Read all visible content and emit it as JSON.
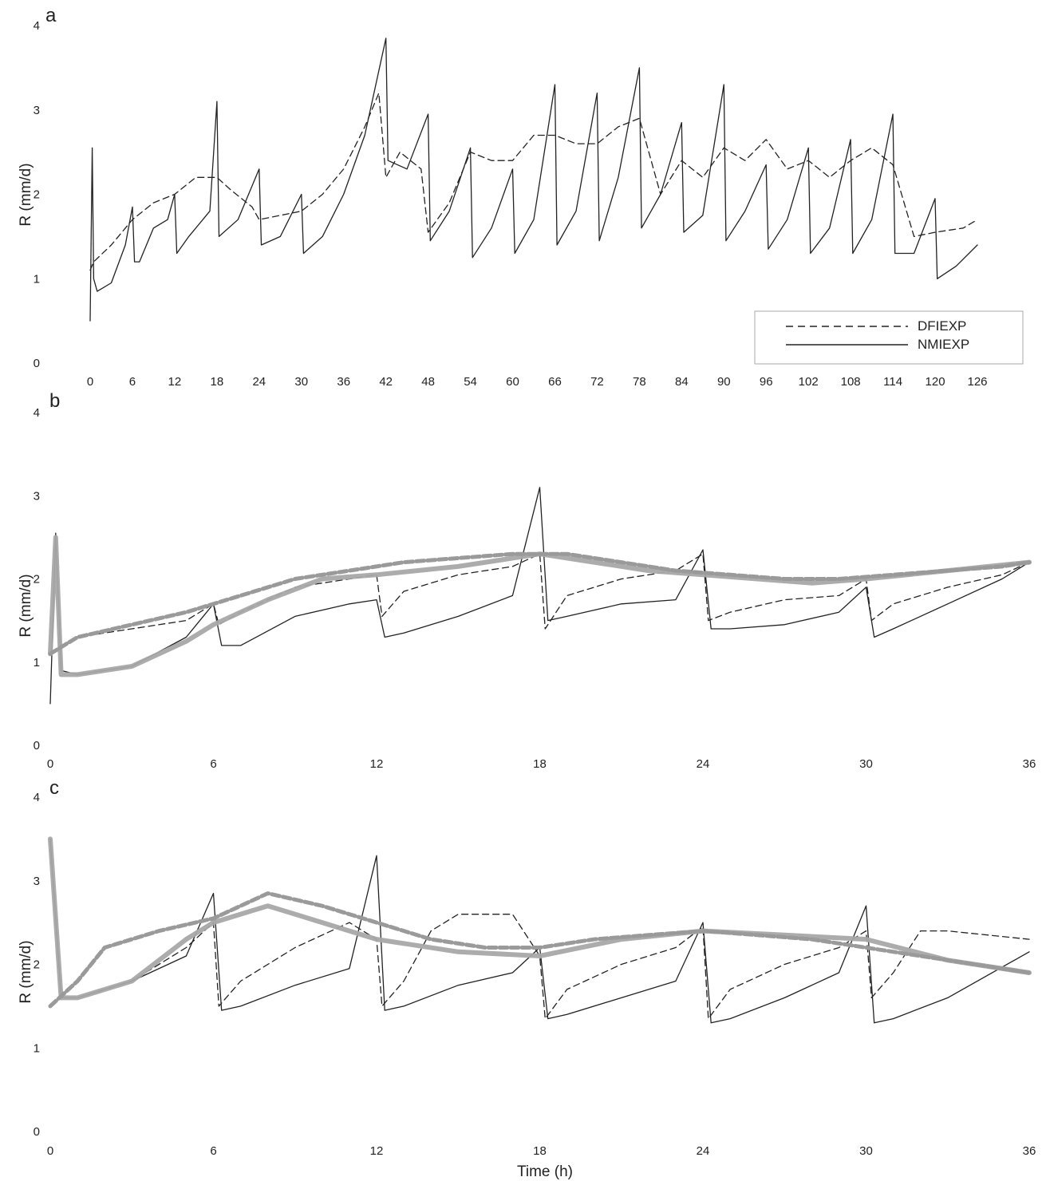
{
  "chart_data": [
    {
      "type": "line",
      "panel": "a",
      "ylabel": "R (mm/d)",
      "xlabel": "",
      "ylim": [
        0,
        4
      ],
      "xlim": [
        0,
        126
      ],
      "xticks": [
        0,
        6,
        12,
        18,
        24,
        30,
        36,
        42,
        48,
        54,
        60,
        66,
        72,
        78,
        84,
        90,
        96,
        102,
        108,
        114,
        120,
        126
      ],
      "yticks": [
        0,
        1,
        2,
        3,
        4
      ],
      "legend": {
        "placement": "bottom-right",
        "entries": [
          "DFIEXP",
          "NMIEXP"
        ]
      },
      "series": [
        {
          "name": "DFIEXP",
          "style": "dashed",
          "x": [
            0,
            0.5,
            3,
            6,
            9,
            12,
            15,
            18,
            20,
            23,
            24,
            27,
            30,
            33,
            36,
            39,
            41,
            42,
            44,
            47,
            48,
            51,
            54,
            57,
            60,
            63,
            66,
            69,
            72,
            75,
            78,
            81,
            84,
            87,
            90,
            93,
            96,
            99,
            102,
            105,
            108,
            111,
            114,
            117,
            120,
            124,
            126
          ],
          "y": [
            1.1,
            1.2,
            1.4,
            1.7,
            1.9,
            2.0,
            2.2,
            2.2,
            2.05,
            1.85,
            1.7,
            1.75,
            1.8,
            2.0,
            2.3,
            2.8,
            3.2,
            2.2,
            2.5,
            2.3,
            1.55,
            1.9,
            2.5,
            2.4,
            2.4,
            2.7,
            2.7,
            2.6,
            2.6,
            2.8,
            2.9,
            2.0,
            2.4,
            2.2,
            2.55,
            2.4,
            2.65,
            2.3,
            2.4,
            2.2,
            2.4,
            2.55,
            2.35,
            1.5,
            1.55,
            1.6,
            1.7
          ]
        },
        {
          "name": "NMIEXP",
          "style": "solid",
          "x": [
            0,
            0.3,
            0.5,
            1,
            3,
            5,
            6,
            6.3,
            7,
            9,
            11,
            12,
            12.3,
            14,
            17,
            18,
            18.3,
            21,
            24,
            24.3,
            27,
            30,
            30.3,
            33,
            36,
            39,
            42,
            42.3,
            45,
            48,
            48.3,
            51,
            54,
            54.3,
            57,
            60,
            60.3,
            63,
            66,
            66.3,
            69,
            72,
            72.3,
            75,
            78,
            78.3,
            81,
            84,
            84.3,
            87,
            90,
            90.3,
            93,
            96,
            96.3,
            99,
            102,
            102.3,
            105,
            108,
            108.3,
            111,
            114,
            114.3,
            117,
            120,
            120.3,
            123,
            126
          ],
          "y": [
            0.5,
            2.55,
            1.0,
            0.85,
            0.95,
            1.4,
            1.85,
            1.2,
            1.2,
            1.6,
            1.7,
            2.0,
            1.3,
            1.5,
            1.8,
            3.1,
            1.5,
            1.7,
            2.3,
            1.4,
            1.5,
            2.0,
            1.3,
            1.5,
            2.0,
            2.7,
            3.85,
            2.4,
            2.3,
            2.95,
            1.45,
            1.8,
            2.55,
            1.25,
            1.6,
            2.3,
            1.3,
            1.7,
            3.3,
            1.4,
            1.8,
            3.2,
            1.45,
            2.2,
            3.5,
            1.6,
            2.0,
            2.85,
            1.55,
            1.75,
            3.3,
            1.45,
            1.8,
            2.35,
            1.35,
            1.7,
            2.55,
            1.3,
            1.6,
            2.65,
            1.3,
            1.7,
            2.95,
            1.3,
            1.3,
            1.95,
            1.0,
            1.15,
            1.4
          ]
        }
      ]
    },
    {
      "type": "line",
      "panel": "b",
      "ylabel": "R (mm/d)",
      "xlabel": "",
      "ylim": [
        0,
        4
      ],
      "xlim": [
        0,
        36
      ],
      "xticks": [
        0,
        6,
        12,
        18,
        24,
        30,
        36
      ],
      "yticks": [
        0,
        1,
        2,
        3,
        4
      ],
      "series": [
        {
          "style": "dashed",
          "x": [
            0,
            0.4,
            1,
            3,
            5,
            6,
            6.2,
            7,
            9,
            11,
            12,
            12.2,
            13,
            15,
            17,
            18,
            18.2,
            19,
            21,
            23,
            24,
            24.2,
            25,
            27,
            29,
            30,
            30.2,
            31,
            33,
            35,
            36
          ],
          "y": [
            1.1,
            1.2,
            1.3,
            1.4,
            1.5,
            1.7,
            1.45,
            1.6,
            1.9,
            2.0,
            2.05,
            1.55,
            1.85,
            2.05,
            2.15,
            2.3,
            1.4,
            1.8,
            2.0,
            2.1,
            2.3,
            1.5,
            1.6,
            1.75,
            1.8,
            2.0,
            1.5,
            1.7,
            1.9,
            2.05,
            2.2
          ]
        },
        {
          "style": "solid",
          "x": [
            0,
            0.2,
            0.4,
            1,
            3,
            5,
            6,
            6.3,
            7,
            9,
            11,
            12,
            12.3,
            13,
            15,
            17,
            18,
            18.3,
            19,
            21,
            23,
            24,
            24.3,
            25,
            27,
            29,
            30,
            30.3,
            31,
            33,
            35,
            36
          ],
          "y": [
            0.5,
            2.55,
            0.9,
            0.85,
            0.95,
            1.3,
            1.7,
            1.2,
            1.2,
            1.55,
            1.7,
            1.75,
            1.3,
            1.35,
            1.55,
            1.8,
            3.1,
            1.5,
            1.55,
            1.7,
            1.75,
            2.35,
            1.4,
            1.4,
            1.45,
            1.6,
            1.9,
            1.3,
            1.4,
            1.7,
            2.0,
            2.2
          ]
        },
        {
          "style": "thick-gray-band",
          "x": [
            0,
            0.2,
            0.4,
            1,
            3,
            5,
            6,
            8,
            10,
            12,
            15,
            18,
            20,
            22,
            24,
            26,
            28,
            30,
            33,
            36
          ],
          "y": [
            1.1,
            2.5,
            0.85,
            0.85,
            0.95,
            1.25,
            1.45,
            1.75,
            2.0,
            2.05,
            2.15,
            2.3,
            2.2,
            2.1,
            2.05,
            2.0,
            1.95,
            2.0,
            2.1,
            2.2
          ]
        },
        {
          "style": "gray-dashed-band",
          "x": [
            0,
            1,
            3,
            5,
            7,
            9,
            11,
            13,
            15,
            17,
            19,
            21,
            23,
            25,
            27,
            29,
            31,
            33,
            35,
            36
          ],
          "y": [
            1.1,
            1.3,
            1.45,
            1.6,
            1.8,
            2.0,
            2.1,
            2.2,
            2.25,
            2.3,
            2.3,
            2.2,
            2.1,
            2.05,
            2.0,
            2.0,
            2.05,
            2.1,
            2.15,
            2.2
          ]
        }
      ]
    },
    {
      "type": "line",
      "panel": "c",
      "ylabel": "R (mm/d)",
      "xlabel": "Time (h)",
      "ylim": [
        0,
        4
      ],
      "xlim": [
        0,
        36
      ],
      "xticks": [
        0,
        6,
        12,
        18,
        24,
        30,
        36
      ],
      "yticks": [
        0,
        1,
        2,
        3,
        4
      ],
      "series": [
        {
          "style": "dashed",
          "x": [
            0,
            0.4,
            1,
            3,
            5,
            6,
            6.2,
            7,
            9,
            11,
            12,
            12.2,
            13,
            14,
            15,
            17,
            18,
            18.2,
            19,
            21,
            23,
            24,
            24.2,
            25,
            27,
            29,
            30,
            30.2,
            31,
            32,
            33,
            36
          ],
          "y": [
            3.5,
            1.6,
            1.6,
            1.8,
            2.2,
            2.5,
            1.5,
            1.8,
            2.2,
            2.5,
            2.3,
            1.5,
            1.8,
            2.4,
            2.6,
            2.6,
            2.1,
            1.35,
            1.7,
            2.0,
            2.2,
            2.45,
            1.35,
            1.7,
            2.0,
            2.2,
            2.4,
            1.6,
            1.9,
            2.4,
            2.4,
            2.3
          ]
        },
        {
          "style": "solid",
          "x": [
            0,
            0.4,
            1,
            3,
            5,
            6,
            6.3,
            7,
            9,
            11,
            12,
            12.3,
            13,
            15,
            17,
            18,
            18.3,
            19,
            21,
            23,
            24,
            24.3,
            25,
            27,
            29,
            30,
            30.3,
            31,
            33,
            36
          ],
          "y": [
            3.5,
            1.6,
            1.6,
            1.8,
            2.1,
            2.85,
            1.45,
            1.5,
            1.75,
            1.95,
            3.3,
            1.45,
            1.5,
            1.75,
            1.9,
            2.2,
            1.35,
            1.4,
            1.6,
            1.8,
            2.5,
            1.3,
            1.35,
            1.6,
            1.9,
            2.7,
            1.3,
            1.35,
            1.6,
            2.15
          ]
        },
        {
          "style": "thick-gray-band",
          "x": [
            0,
            0.4,
            1,
            3,
            5,
            6,
            8,
            10,
            12,
            15,
            18,
            21,
            24,
            27,
            30,
            33,
            36
          ],
          "y": [
            3.5,
            1.6,
            1.6,
            1.8,
            2.3,
            2.5,
            2.7,
            2.5,
            2.3,
            2.15,
            2.1,
            2.3,
            2.4,
            2.35,
            2.3,
            2.05,
            1.9
          ]
        },
        {
          "style": "gray-dashed-band",
          "x": [
            0,
            1,
            2,
            4,
            6,
            8,
            10,
            12,
            14,
            16,
            18,
            20,
            22,
            24,
            26,
            28,
            30,
            32,
            34,
            36
          ],
          "y": [
            1.5,
            1.8,
            2.2,
            2.4,
            2.55,
            2.85,
            2.7,
            2.5,
            2.3,
            2.2,
            2.2,
            2.3,
            2.35,
            2.4,
            2.35,
            2.3,
            2.2,
            2.1,
            2.0,
            1.9
          ]
        }
      ]
    }
  ],
  "panels": [
    {
      "letter": "a",
      "ylabel": "R (mm/d)"
    },
    {
      "letter": "b",
      "ylabel": "R (mm/d)"
    },
    {
      "letter": "c",
      "ylabel": "R (mm/d)"
    }
  ],
  "xlabel_bottom": "Time (h)",
  "legend_entries": [
    "DFIEXP",
    "NMIEXP"
  ]
}
